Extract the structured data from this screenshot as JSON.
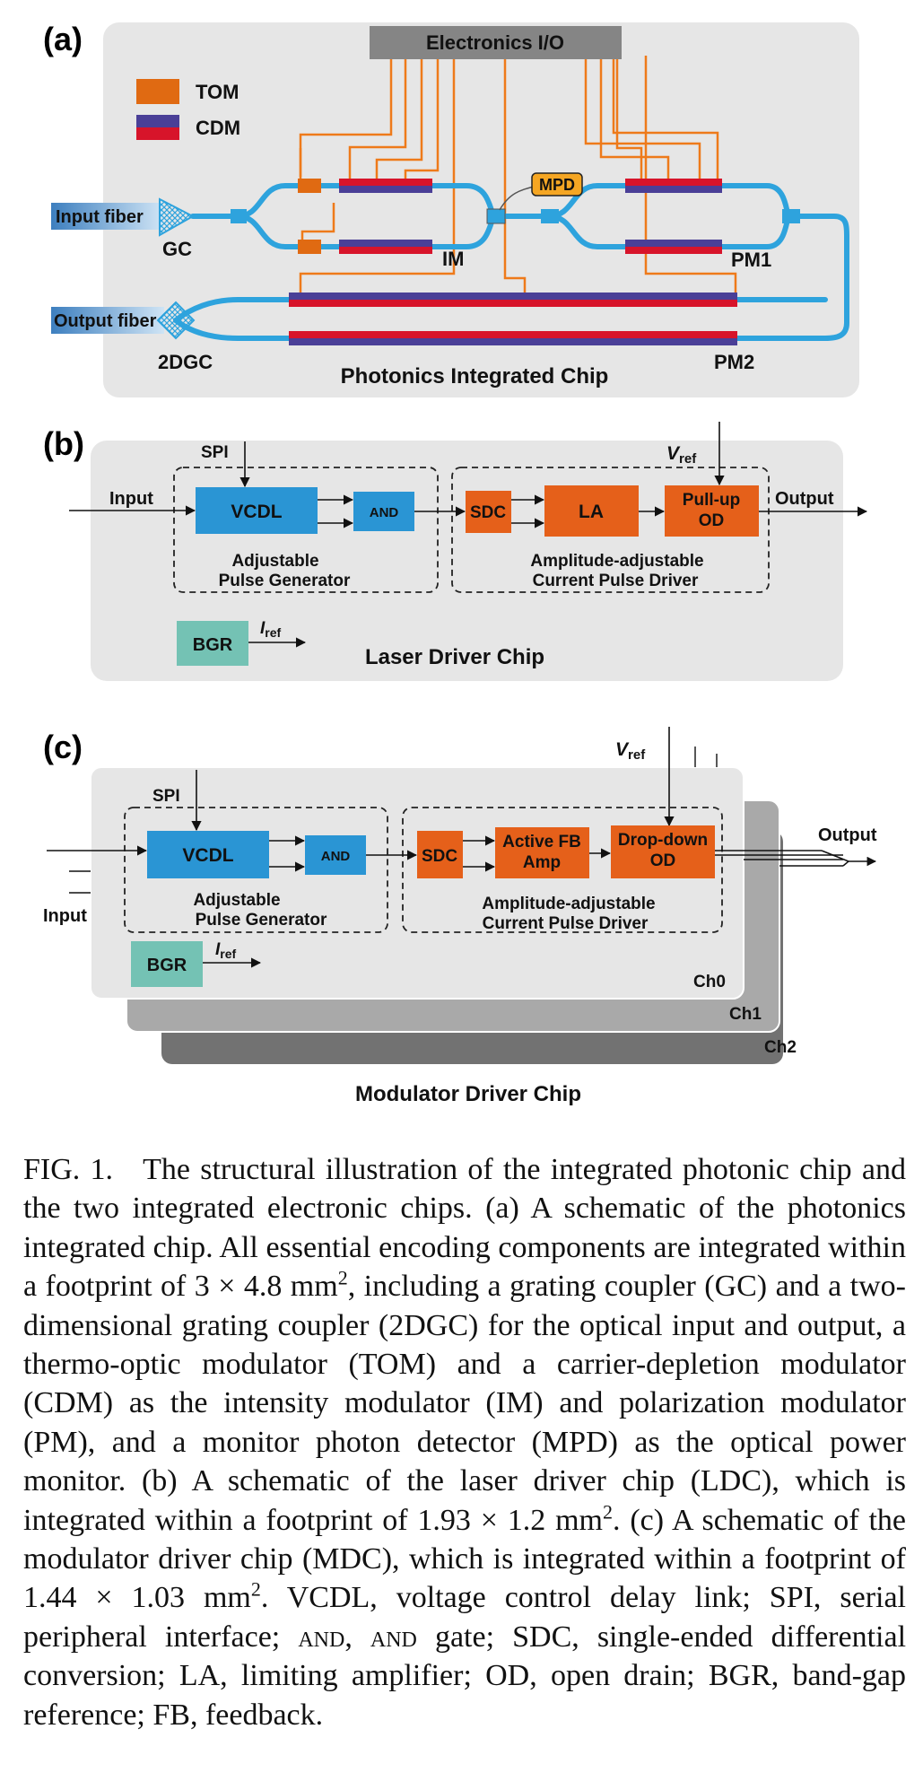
{
  "panel_a": {
    "label": "(a)",
    "io": "Electronics I/O",
    "legend_tom": "TOM",
    "legend_cdm": "CDM",
    "input_fiber": "Input fiber",
    "gc": "GC",
    "mpd": "MPD",
    "im": "IM",
    "pm1": "PM1",
    "output_fiber": "Output fiber",
    "dgc": "2DGC",
    "pm2": "PM2",
    "title": "Photonics Integrated Chip",
    "colors": {
      "waveguide": "#2ea3dd",
      "tom": "#e06a12",
      "cdm_red": "#d7142a",
      "cdm_blue": "#4a3f97",
      "wire": "#ee7a1a",
      "chip": "#e6e6e6",
      "io": "#858585"
    }
  },
  "panel_b": {
    "label": "(b)",
    "spi": "SPI",
    "vref": "V",
    "vref_sub": "ref",
    "input": "Input",
    "vcdl": "VCDL",
    "and": "AND",
    "sdc": "SDC",
    "la": "LA",
    "od_line1": "Pull-up",
    "od_line2": "OD",
    "output": "Output",
    "apg_line1": "Adjustable",
    "apg_line2": "Pulse Generator",
    "drv_line1": "Amplitude-adjustable",
    "drv_line2": "Current Pulse Driver",
    "bgr": "BGR",
    "iref": "I",
    "iref_sub": "ref",
    "title": "Laser Driver Chip",
    "colors": {
      "blue": "#2a95d4",
      "orange": "#e5601a",
      "teal": "#74c2b4",
      "chip": "#e6e6e6"
    }
  },
  "panel_c": {
    "label": "(c)",
    "vref": "V",
    "vref_sub": "ref",
    "spi": "SPI",
    "output": "Output",
    "input": "Input",
    "vcdl": "VCDL",
    "and": "AND",
    "sdc": "SDC",
    "amp_line1": "Active FB",
    "amp_line2": "Amp",
    "od_line1": "Drop-down",
    "od_line2": "OD",
    "apg_line1": "Adjustable",
    "apg_line2": "Pulse Generator",
    "drv_line1": "Amplitude-adjustable",
    "drv_line2": "Current Pulse Driver",
    "bgr": "BGR",
    "iref": "I",
    "iref_sub": "ref",
    "ch0": "Ch0",
    "ch1": "Ch1",
    "ch2": "Ch2",
    "title": "Modulator Driver Chip",
    "colors": {
      "ch0": "#e6e6e6",
      "ch1": "#a9a9a9",
      "ch2": "#727272"
    }
  },
  "caption": {
    "fig": "FIG. 1.",
    "s1": "The structural illustration of the integrated photonic chip and the two integrated electronic chips. (a) A schematic of the photonics integrated chip. All essential encoding components are integrated within a footprint of 3 × 4.8 mm",
    "s2": ", including a grating coupler (GC) and a two-dimensional grating coupler (2DGC) for the optical input and output, a thermo-optic modulator (TOM) and a carrier-depletion modulator (CDM) as the intensity modulator (IM) and polarization modulator (PM), and a monitor photon detector (MPD) as the optical power monitor. (b) A schematic of the laser driver chip (LDC), which is integrated within a footprint of 1.93 × 1.2 mm",
    "s3": ". (c) A schematic of the modulator driver chip (MDC), which is integrated within a footprint of 1.44 × 1.03 mm",
    "s4": ". VCDL, voltage control delay link; SPI, serial peripheral interface;",
    "and1": "and",
    "s5": ",",
    "and2": "and",
    "s6": "gate; SDC, single-ended differential conversion; LA, limiting amplifier; OD, open drain; BGR, band-gap reference; FB, feedback.",
    "sup": "2"
  }
}
